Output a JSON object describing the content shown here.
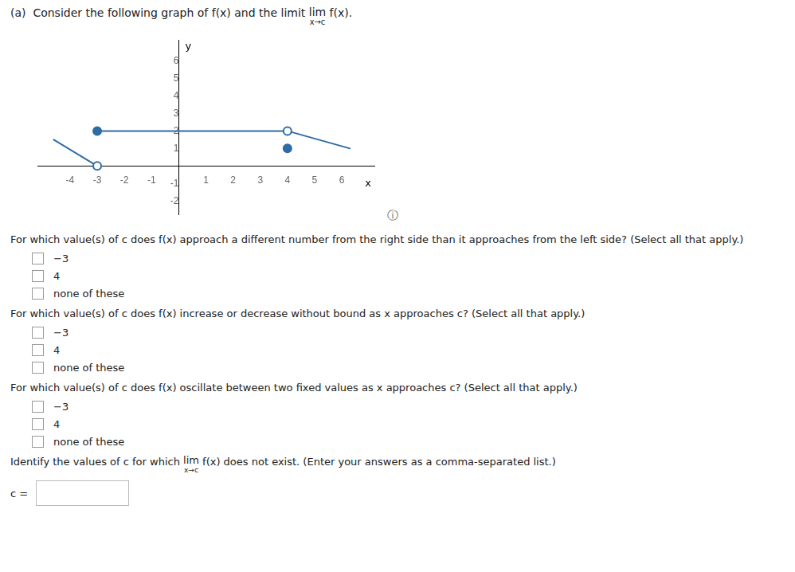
{
  "chart_data": {
    "type": "line",
    "title": [
      "(a)  Consider the following graph of f(x) and the limit ",
      {
        "text": "lim",
        "below": "x→c"
      },
      " f(x)."
    ],
    "xlabel": "x",
    "ylabel": "y",
    "color": "#2E6DA4",
    "xlim": [
      -5.2,
      7.2
    ],
    "ylim": [
      -2.8,
      7.2
    ],
    "xticks": [
      -4,
      -3,
      -2,
      -1,
      1,
      2,
      3,
      4,
      5,
      6
    ],
    "yticks": [
      -2,
      -1,
      1,
      2,
      3,
      4,
      5,
      6
    ],
    "grid": false,
    "series": [
      {
        "x": [
          -4.6,
          -3
        ],
        "values": [
          1.5,
          0
        ],
        "marker": "none",
        "line_style": "solid"
      },
      {
        "x": [
          -3
        ],
        "values": [
          0
        ],
        "marker": "open_circle",
        "line_style": "none"
      },
      {
        "x": [
          -3,
          4
        ],
        "values": [
          2,
          2
        ],
        "marker": "none",
        "line_style": "solid"
      },
      {
        "x": [
          -3
        ],
        "values": [
          2
        ],
        "marker": "filled_circle",
        "line_style": "none"
      },
      {
        "x": [
          4
        ],
        "values": [
          2
        ],
        "marker": "open_circle",
        "line_style": "none"
      },
      {
        "x": [
          4
        ],
        "values": [
          1
        ],
        "marker": "filled_circle",
        "line_style": "none"
      },
      {
        "x": [
          4,
          6.3
        ],
        "values": [
          2,
          1.0
        ],
        "marker": "none",
        "line_style": "solid"
      }
    ],
    "annotations": [
      {
        "text": "ⓘ"
      },
      {
        "text": "For which value(s) of c does f(x) approach a different number from the right side than it approaches from the left side? (Select all that apply.)",
        "options": [
          "−3",
          "4",
          "none of these"
        ]
      },
      {
        "text": "For which value(s) of c does f(x) increase or decrease without bound as x approaches c? (Select all that apply.)",
        "options": [
          "−3",
          "4",
          "none of these"
        ]
      },
      {
        "text": "For which value(s) of c does f(x) oscillate between two fixed values as x approaches c? (Select all that apply.)",
        "options": [
          "−3",
          "4",
          "none of these"
        ]
      },
      {
        "text": [
          "Identify the values of c for which ",
          {
            "text": "lim",
            "below": "x→c"
          },
          " f(x) does not exist. (Enter your answers as a comma-separated list.)"
        ],
        "input_label": "c ="
      }
    ]
  }
}
